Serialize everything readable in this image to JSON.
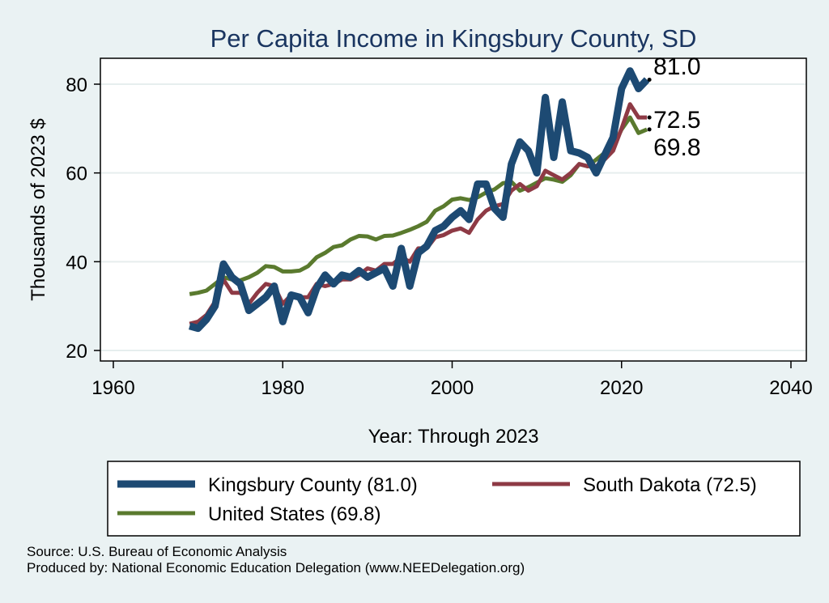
{
  "colors": {
    "kingsbury": "#1d4a73",
    "south_dakota": "#8e3a45",
    "united_states": "#5a7a2e",
    "title": "#1a3560"
  },
  "chart_data": {
    "type": "line",
    "title": "Per Capita Income in Kingsbury County, SD",
    "xlabel": "Year: Through 2023",
    "ylabel": "Thousands of 2023 $",
    "xlim": [
      1960,
      2040
    ],
    "ylim": [
      18,
      86
    ],
    "x_ticks": [
      "1960",
      "1980",
      "2000",
      "2020",
      "2040"
    ],
    "y_ticks": [
      "20",
      "40",
      "60",
      "80"
    ],
    "grid": true,
    "legend_position": "bottom",
    "x": [
      1969,
      1970,
      1971,
      1972,
      1973,
      1974,
      1975,
      1976,
      1977,
      1978,
      1979,
      1980,
      1981,
      1982,
      1983,
      1984,
      1985,
      1986,
      1987,
      1988,
      1989,
      1990,
      1991,
      1992,
      1993,
      1994,
      1995,
      1996,
      1997,
      1998,
      1999,
      2000,
      2001,
      2002,
      2003,
      2004,
      2005,
      2006,
      2007,
      2008,
      2009,
      2010,
      2011,
      2012,
      2013,
      2014,
      2015,
      2016,
      2017,
      2018,
      2019,
      2020,
      2021,
      2022,
      2023
    ],
    "series": [
      {
        "name": "Kingsbury County (81.0)",
        "key": "kingsbury",
        "end_label": "81.0",
        "values": [
          25.5,
          25,
          27,
          30,
          39.5,
          36.5,
          35,
          29,
          30.5,
          32,
          34.5,
          26.5,
          32.5,
          32,
          28.5,
          34,
          37,
          35,
          37,
          36.5,
          38,
          36.5,
          37.5,
          38.5,
          34.5,
          43,
          34.5,
          42,
          43.5,
          47,
          48,
          50,
          51.5,
          49.5,
          57.5,
          57.5,
          52,
          50,
          62,
          67,
          65,
          60,
          77,
          63.5,
          76,
          65,
          64.5,
          63.5,
          60,
          64,
          68,
          79,
          83,
          79,
          81
        ]
      },
      {
        "name": "South Dakota (72.5)",
        "key": "south_dakota",
        "end_label": "72.5",
        "values": [
          26,
          26.5,
          28,
          31,
          36,
          33,
          33,
          30.5,
          33,
          35,
          34.5,
          30.5,
          32.5,
          32,
          32,
          35,
          34.5,
          35,
          36,
          36,
          37,
          38.5,
          38,
          39.5,
          39.5,
          41,
          40,
          43,
          43,
          45.5,
          46,
          47,
          47.5,
          46.5,
          49.5,
          51.5,
          52.5,
          53,
          56,
          57.5,
          56,
          57,
          60.5,
          59.5,
          58.5,
          60,
          62,
          61.5,
          61.5,
          63,
          65,
          70,
          75.5,
          72.5,
          72.5
        ]
      },
      {
        "name": "United States (69.8)",
        "key": "united_states",
        "end_label": "69.8",
        "values": [
          32.7,
          33,
          33.5,
          35,
          36.5,
          36,
          35.8,
          36.5,
          37.5,
          39,
          38.8,
          37.8,
          37.8,
          38,
          39,
          41,
          42,
          43.3,
          43.7,
          45,
          45.8,
          45.7,
          45,
          45.8,
          45.9,
          46.5,
          47.2,
          48,
          49,
          51.5,
          52.5,
          54,
          54.3,
          53.9,
          54.5,
          55.6,
          56.3,
          57.7,
          58,
          56,
          56.8,
          57.8,
          58.8,
          58.5,
          58,
          59.5,
          62,
          61.5,
          63,
          64.5,
          66,
          69.8,
          72.5,
          69,
          69.8
        ]
      }
    ]
  },
  "source_lines": [
    "Source: U.S. Bureau of Economic Analysis",
    "Produced by: National Economic Education Delegation (www.NEEDelegation.org)"
  ]
}
